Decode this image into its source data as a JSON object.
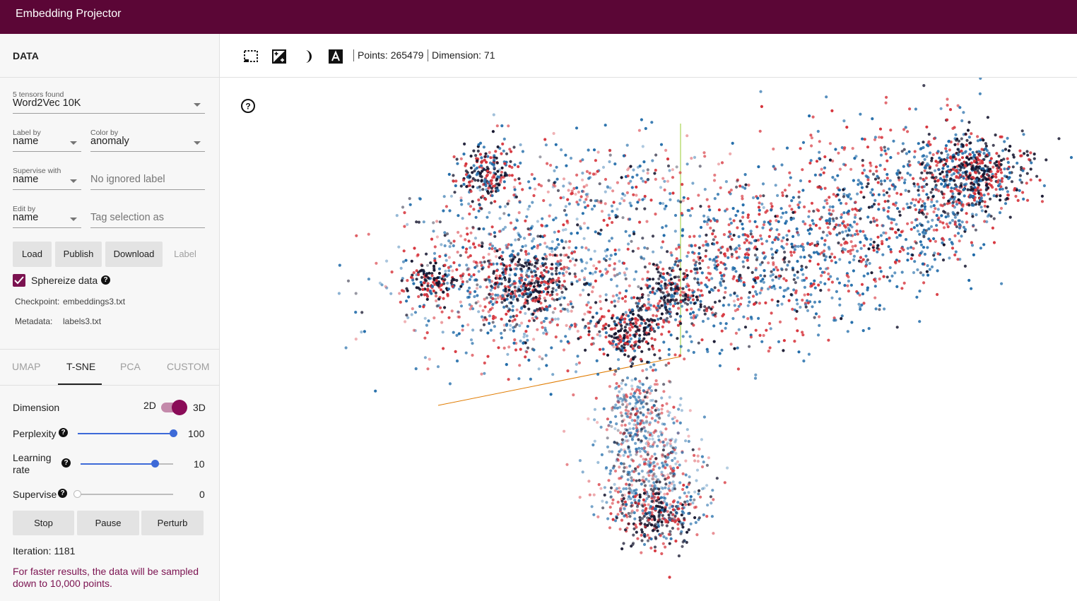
{
  "app": {
    "title": "Embedding Projector"
  },
  "data_panel": {
    "title": "DATA",
    "tensor": {
      "label": "5 tensors found",
      "value": "Word2Vec 10K"
    },
    "label_by": {
      "label": "Label by",
      "value": "name"
    },
    "color_by": {
      "label": "Color by",
      "value": "anomaly"
    },
    "supervise_with": {
      "label": "Supervise with",
      "value": "name",
      "ignored_placeholder": "No ignored label"
    },
    "edit_by": {
      "label": "Edit by",
      "value": "name",
      "tag_placeholder": "Tag selection as"
    },
    "buttons": {
      "load": "Load",
      "publish": "Publish",
      "download": "Download",
      "label": "Label"
    },
    "sphereize": {
      "label": "Sphereize data",
      "checked": true
    },
    "checkpoint": {
      "key": "Checkpoint:",
      "value": "embeddings3.txt"
    },
    "metadata": {
      "key": "Metadata:",
      "value": "labels3.txt"
    }
  },
  "projection_tabs": [
    "UMAP",
    "T-SNE",
    "PCA",
    "CUSTOM"
  ],
  "active_tab": "T-SNE",
  "tsne": {
    "dimension": {
      "label": "Dimension",
      "off_label": "2D",
      "on_label": "3D",
      "value": "3D"
    },
    "perplexity": {
      "label": "Perplexity",
      "value": "100",
      "fraction": 1.0
    },
    "learning_rate": {
      "label_line1": "Learning",
      "label_line2": "rate",
      "value": "10",
      "fraction": 0.8
    },
    "supervise": {
      "label": "Supervise",
      "value": "0",
      "fraction": 0.0
    },
    "buttons": {
      "stop": "Stop",
      "pause": "Pause",
      "perturb": "Perturb"
    },
    "iteration": "Iteration: 1181",
    "note": "For faster results, the data will be sampled down to 10,000 points."
  },
  "toolbar": {
    "icons": [
      "bounding-box-select-icon",
      "night-mode-contrast-icon",
      "moon-icon",
      "label-a-icon"
    ],
    "points": "Points: 265479",
    "dimension": "Dimension: 71"
  },
  "colors": {
    "brand": "#5b0636",
    "accent": "#7b1250",
    "point_red": "#d6323a",
    "point_blue": "#1f6aa8",
    "point_dark": "#15152e",
    "axis_y": "#9acd32",
    "axis_x": "#e07b00"
  }
}
